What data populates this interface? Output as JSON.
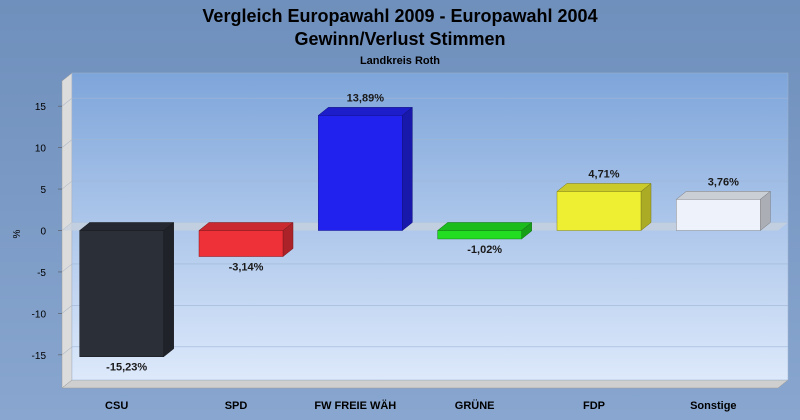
{
  "chart_data": {
    "type": "bar",
    "title": "Vergleich Europawahl 2009 - Europawahl 2004",
    "subtitle": "Gewinn/Verlust Stimmen",
    "subsubtitle": "Landkreis Roth",
    "ylabel": "%",
    "xlabel": "",
    "ylim": [
      -19,
      19
    ],
    "yticks": [
      15,
      10,
      5,
      0,
      -5,
      -10,
      -15
    ],
    "grid": true,
    "categories": [
      "CSU",
      "SPD",
      "FW FREIE WÄH",
      "GRÜNE",
      "FDP",
      "Sonstige"
    ],
    "values": [
      -15.23,
      -3.14,
      13.89,
      -1.02,
      4.71,
      3.76
    ],
    "value_labels": [
      "-15,23%",
      "-3,14%",
      "13,89%",
      "-1,02%",
      "4,71%",
      "3,76%"
    ],
    "colors": [
      "#2b2f38",
      "#ee3038",
      "#2222ee",
      "#22dd22",
      "#eeee33",
      "#eef2fb"
    ],
    "background": "#7b9cc6",
    "plot_gradient": [
      "#7ea5da",
      "#dde9fb"
    ]
  }
}
